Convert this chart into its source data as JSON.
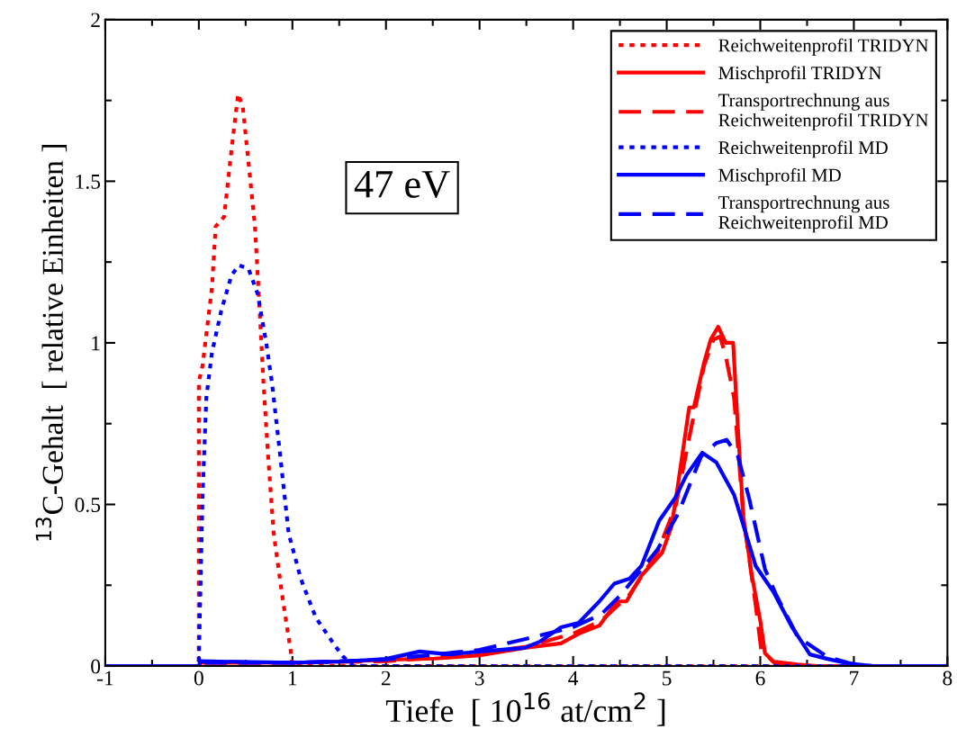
{
  "chart_data": {
    "type": "line",
    "xlabel": "Tiefe  [ 10$^{16}$ at/cm$^{2}$ ]",
    "ylabel": "$^{13}$C-Gehalt  [ relative Einheiten ]",
    "xlim": [
      -1,
      8
    ],
    "xticks": [
      -1,
      0,
      1,
      2,
      3,
      4,
      5,
      6,
      7,
      8
    ],
    "ylim": [
      0,
      2
    ],
    "yticks": [
      0,
      0.5,
      1,
      1.5,
      2
    ],
    "grid": false,
    "legend": "top right",
    "marker": "none",
    "annotations": [
      "47 eV"
    ],
    "series": [
      {
        "name": "Reichweitenprofil TRIDYN",
        "color": "#ff0000",
        "line_style": "dotted",
        "x": [
          -1,
          0,
          0,
          0.04,
          0.14,
          0.18,
          0.27,
          0.35,
          0.42,
          0.47,
          0.53,
          0.6,
          0.65,
          0.69,
          0.74,
          0.8,
          0.9,
          0.98,
          1.0,
          8
        ],
        "values": [
          0,
          0,
          0.88,
          0.93,
          1.17,
          1.36,
          1.39,
          1.6,
          1.77,
          1.73,
          1.56,
          1.36,
          1.1,
          0.88,
          0.65,
          0.41,
          0.2,
          0.05,
          0,
          0
        ]
      },
      {
        "name": "Mischprofil TRIDYN",
        "color": "#ff0000",
        "line_style": "solid",
        "x": [
          -1,
          0,
          0.02,
          1.0,
          1.56,
          2.04,
          2.52,
          3.0,
          3.48,
          3.87,
          4.06,
          4.28,
          4.47,
          4.57,
          4.73,
          4.95,
          5.05,
          5.12,
          5.24,
          5.29,
          5.4,
          5.47,
          5.55,
          5.63,
          5.71,
          5.76,
          5.82,
          5.91,
          6.0,
          6.05,
          6.14,
          6.4,
          6.6,
          8
        ],
        "values": [
          0,
          0,
          0.01,
          0.01,
          0.014,
          0.02,
          0.023,
          0.033,
          0.056,
          0.07,
          0.1,
          0.125,
          0.2,
          0.2,
          0.28,
          0.35,
          0.43,
          0.56,
          0.8,
          0.8,
          0.94,
          1.01,
          1.05,
          1.0,
          1.0,
          0.74,
          0.46,
          0.28,
          0.14,
          0.04,
          0.014,
          0.005,
          0,
          0
        ]
      },
      {
        "name": "Transportrechnung aus\nReichweitenprofil TRIDYN",
        "color": "#ff0000",
        "line_style": "dashed",
        "x": [
          -1,
          0,
          0.02,
          1.0,
          2.0,
          2.5,
          3.0,
          3.5,
          4.0,
          4.3,
          4.6,
          4.9,
          5.1,
          5.25,
          5.4,
          5.5,
          5.57,
          5.63,
          5.72,
          5.82,
          5.95,
          6.01,
          6.15,
          6.3,
          8
        ],
        "values": [
          0,
          0,
          0.01,
          0.01,
          0.015,
          0.025,
          0.04,
          0.06,
          0.1,
          0.14,
          0.22,
          0.35,
          0.5,
          0.72,
          0.93,
          1.01,
          1.02,
          0.96,
          0.83,
          0.46,
          0.19,
          0.05,
          0.01,
          0,
          0
        ]
      },
      {
        "name": "Reichweitenprofil MD",
        "color": "#0000ff",
        "line_style": "dotted",
        "x": [
          -1,
          0,
          0,
          0.04,
          0.08,
          0.14,
          0.24,
          0.35,
          0.43,
          0.53,
          0.63,
          0.72,
          0.78,
          0.87,
          0.96,
          1.09,
          1.25,
          1.45,
          1.54,
          1.65,
          8
        ],
        "values": [
          0,
          0,
          0.02,
          0.53,
          0.83,
          0.97,
          1.1,
          1.21,
          1.24,
          1.23,
          1.15,
          1.0,
          0.88,
          0.65,
          0.41,
          0.27,
          0.15,
          0.065,
          0.03,
          0,
          0
        ]
      },
      {
        "name": "Mischprofil MD",
        "color": "#0000ff",
        "line_style": "solid",
        "x": [
          -1,
          0,
          0.02,
          1.0,
          1.56,
          2.0,
          2.36,
          2.68,
          3.0,
          3.48,
          3.64,
          3.87,
          4.06,
          4.28,
          4.44,
          4.6,
          4.73,
          4.92,
          5.09,
          5.21,
          5.38,
          5.53,
          5.72,
          5.95,
          6.14,
          6.34,
          6.53,
          6.72,
          6.94,
          7.2,
          8
        ],
        "values": [
          0,
          0,
          0.015,
          0.01,
          0.014,
          0.022,
          0.045,
          0.036,
          0.045,
          0.056,
          0.075,
          0.12,
          0.134,
          0.2,
          0.255,
          0.27,
          0.31,
          0.45,
          0.52,
          0.59,
          0.66,
          0.63,
          0.53,
          0.31,
          0.23,
          0.12,
          0.036,
          0.022,
          0.008,
          0,
          0
        ]
      },
      {
        "name": "Transportrechnung aus\nReichweitenprofil MD",
        "color": "#0000ff",
        "line_style": "dashed",
        "x": [
          -1,
          0,
          0.02,
          1.0,
          2.0,
          2.5,
          3.0,
          3.48,
          4.0,
          4.3,
          4.51,
          4.9,
          5.12,
          5.37,
          5.53,
          5.64,
          5.76,
          5.88,
          6.05,
          6.17,
          6.4,
          6.72,
          7.0,
          7.2,
          8
        ],
        "values": [
          0,
          0,
          0.01,
          0.01,
          0.02,
          0.035,
          0.05,
          0.083,
          0.12,
          0.16,
          0.22,
          0.36,
          0.47,
          0.65,
          0.69,
          0.7,
          0.65,
          0.52,
          0.3,
          0.22,
          0.09,
          0.028,
          0.005,
          0,
          0
        ]
      }
    ]
  }
}
